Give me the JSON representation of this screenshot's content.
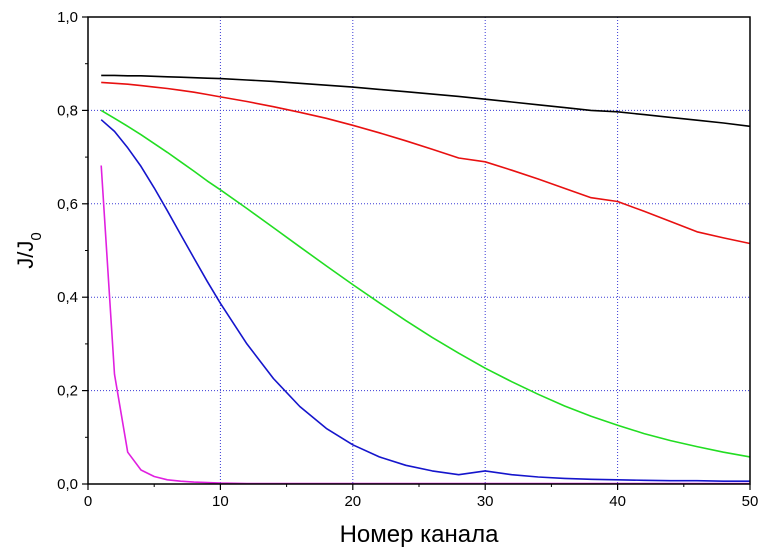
{
  "chart_data": {
    "type": "line",
    "title": "",
    "xlabel": "Номер канала",
    "ylabel_main": "J/J",
    "ylabel_sub": "0",
    "xlim": [
      0,
      50
    ],
    "ylim": [
      0.0,
      1.0
    ],
    "xticks": [
      0,
      10,
      20,
      30,
      40,
      50
    ],
    "xtick_labels": [
      "0",
      "10",
      "20",
      "30",
      "40",
      "50"
    ],
    "yticks": [
      0.0,
      0.2,
      0.4,
      0.6,
      0.8,
      1.0
    ],
    "ytick_labels": [
      "0,0",
      "0,2",
      "0,4",
      "0,6",
      "0,8",
      "1,0"
    ],
    "grid": true,
    "grid_color": "#3a3ad6",
    "legend": "none",
    "x": [
      1,
      2,
      3,
      4,
      5,
      6,
      7,
      8,
      9,
      10,
      12,
      14,
      16,
      18,
      20,
      22,
      24,
      26,
      28,
      30,
      32,
      34,
      36,
      38,
      40,
      42,
      44,
      46,
      48,
      50
    ],
    "series": [
      {
        "color": "#000000",
        "values": [
          0.875,
          0.875,
          0.874,
          0.874,
          0.873,
          0.872,
          0.871,
          0.87,
          0.869,
          0.868,
          0.865,
          0.862,
          0.858,
          0.854,
          0.85,
          0.845,
          0.84,
          0.835,
          0.83,
          0.824,
          0.818,
          0.812,
          0.806,
          0.8,
          0.797,
          0.791,
          0.785,
          0.779,
          0.773,
          0.766
        ]
      },
      {
        "color": "#e81010",
        "values": [
          0.86,
          0.858,
          0.856,
          0.853,
          0.85,
          0.847,
          0.843,
          0.839,
          0.834,
          0.829,
          0.819,
          0.808,
          0.796,
          0.783,
          0.768,
          0.752,
          0.735,
          0.717,
          0.698,
          0.69,
          0.672,
          0.653,
          0.633,
          0.613,
          0.605,
          0.584,
          0.562,
          0.54,
          0.527,
          0.515
        ]
      },
      {
        "color": "#22dd22",
        "values": [
          0.8,
          0.783,
          0.766,
          0.748,
          0.729,
          0.71,
          0.69,
          0.67,
          0.649,
          0.63,
          0.59,
          0.549,
          0.508,
          0.467,
          0.427,
          0.388,
          0.35,
          0.314,
          0.28,
          0.248,
          0.219,
          0.192,
          0.167,
          0.145,
          0.126,
          0.108,
          0.093,
          0.08,
          0.068,
          0.058
        ]
      },
      {
        "color": "#1515cc",
        "values": [
          0.78,
          0.755,
          0.72,
          0.68,
          0.634,
          0.585,
          0.534,
          0.484,
          0.434,
          0.387,
          0.3,
          0.226,
          0.166,
          0.119,
          0.084,
          0.058,
          0.04,
          0.028,
          0.02,
          0.028,
          0.02,
          0.015,
          0.012,
          0.01,
          0.009,
          0.008,
          0.007,
          0.007,
          0.006,
          0.006
        ]
      },
      {
        "color": "#e020e0",
        "values": [
          0.682,
          0.235,
          0.068,
          0.03,
          0.016,
          0.009,
          0.006,
          0.004,
          0.003,
          0.002,
          0.001,
          0.001,
          0.001,
          0.001,
          0.001,
          0.001,
          0.001,
          0.001,
          0.001,
          0.001,
          0.001,
          0.001,
          0.001,
          0.001,
          0.001,
          0.001,
          0.001,
          0.001,
          0.001,
          0.001
        ]
      }
    ]
  }
}
